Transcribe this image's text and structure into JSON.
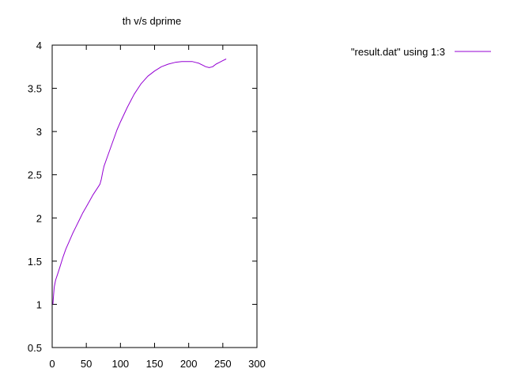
{
  "chart_data": {
    "type": "line",
    "title": "th v/s dprime",
    "xlabel": "",
    "ylabel": "",
    "xlim": [
      0,
      300
    ],
    "ylim": [
      0.5,
      4
    ],
    "xticks": [
      0,
      50,
      100,
      150,
      200,
      250,
      300
    ],
    "yticks": [
      0.5,
      1,
      1.5,
      2,
      2.5,
      3,
      3.5,
      4
    ],
    "xtick_labels": [
      "0",
      "50",
      "100",
      "150",
      "200",
      "250",
      "300"
    ],
    "ytick_labels": [
      "0.5",
      "1",
      "1.5",
      "2",
      "2.5",
      "3",
      "3.5",
      "4"
    ],
    "grid": false,
    "legend_position": "outside-top-right",
    "series": [
      {
        "name": "\"result.dat\" using 1:3",
        "color": "#9400d3",
        "x": [
          1,
          2,
          3,
          5,
          8,
          12,
          16,
          20,
          25,
          30,
          35,
          40,
          45,
          50,
          55,
          60,
          65,
          70,
          72,
          74,
          76,
          80,
          85,
          90,
          95,
          100,
          110,
          120,
          130,
          140,
          150,
          160,
          170,
          180,
          190,
          200,
          205,
          210,
          215,
          220,
          225,
          230,
          235,
          240,
          245,
          250,
          255
        ],
        "y": [
          1.0,
          1.1,
          1.2,
          1.28,
          1.35,
          1.45,
          1.55,
          1.64,
          1.73,
          1.82,
          1.9,
          1.98,
          2.06,
          2.13,
          2.2,
          2.27,
          2.33,
          2.39,
          2.45,
          2.53,
          2.6,
          2.69,
          2.8,
          2.91,
          3.02,
          3.11,
          3.28,
          3.43,
          3.55,
          3.64,
          3.7,
          3.75,
          3.78,
          3.8,
          3.81,
          3.81,
          3.81,
          3.8,
          3.79,
          3.77,
          3.75,
          3.74,
          3.75,
          3.78,
          3.8,
          3.82,
          3.84
        ]
      }
    ]
  }
}
